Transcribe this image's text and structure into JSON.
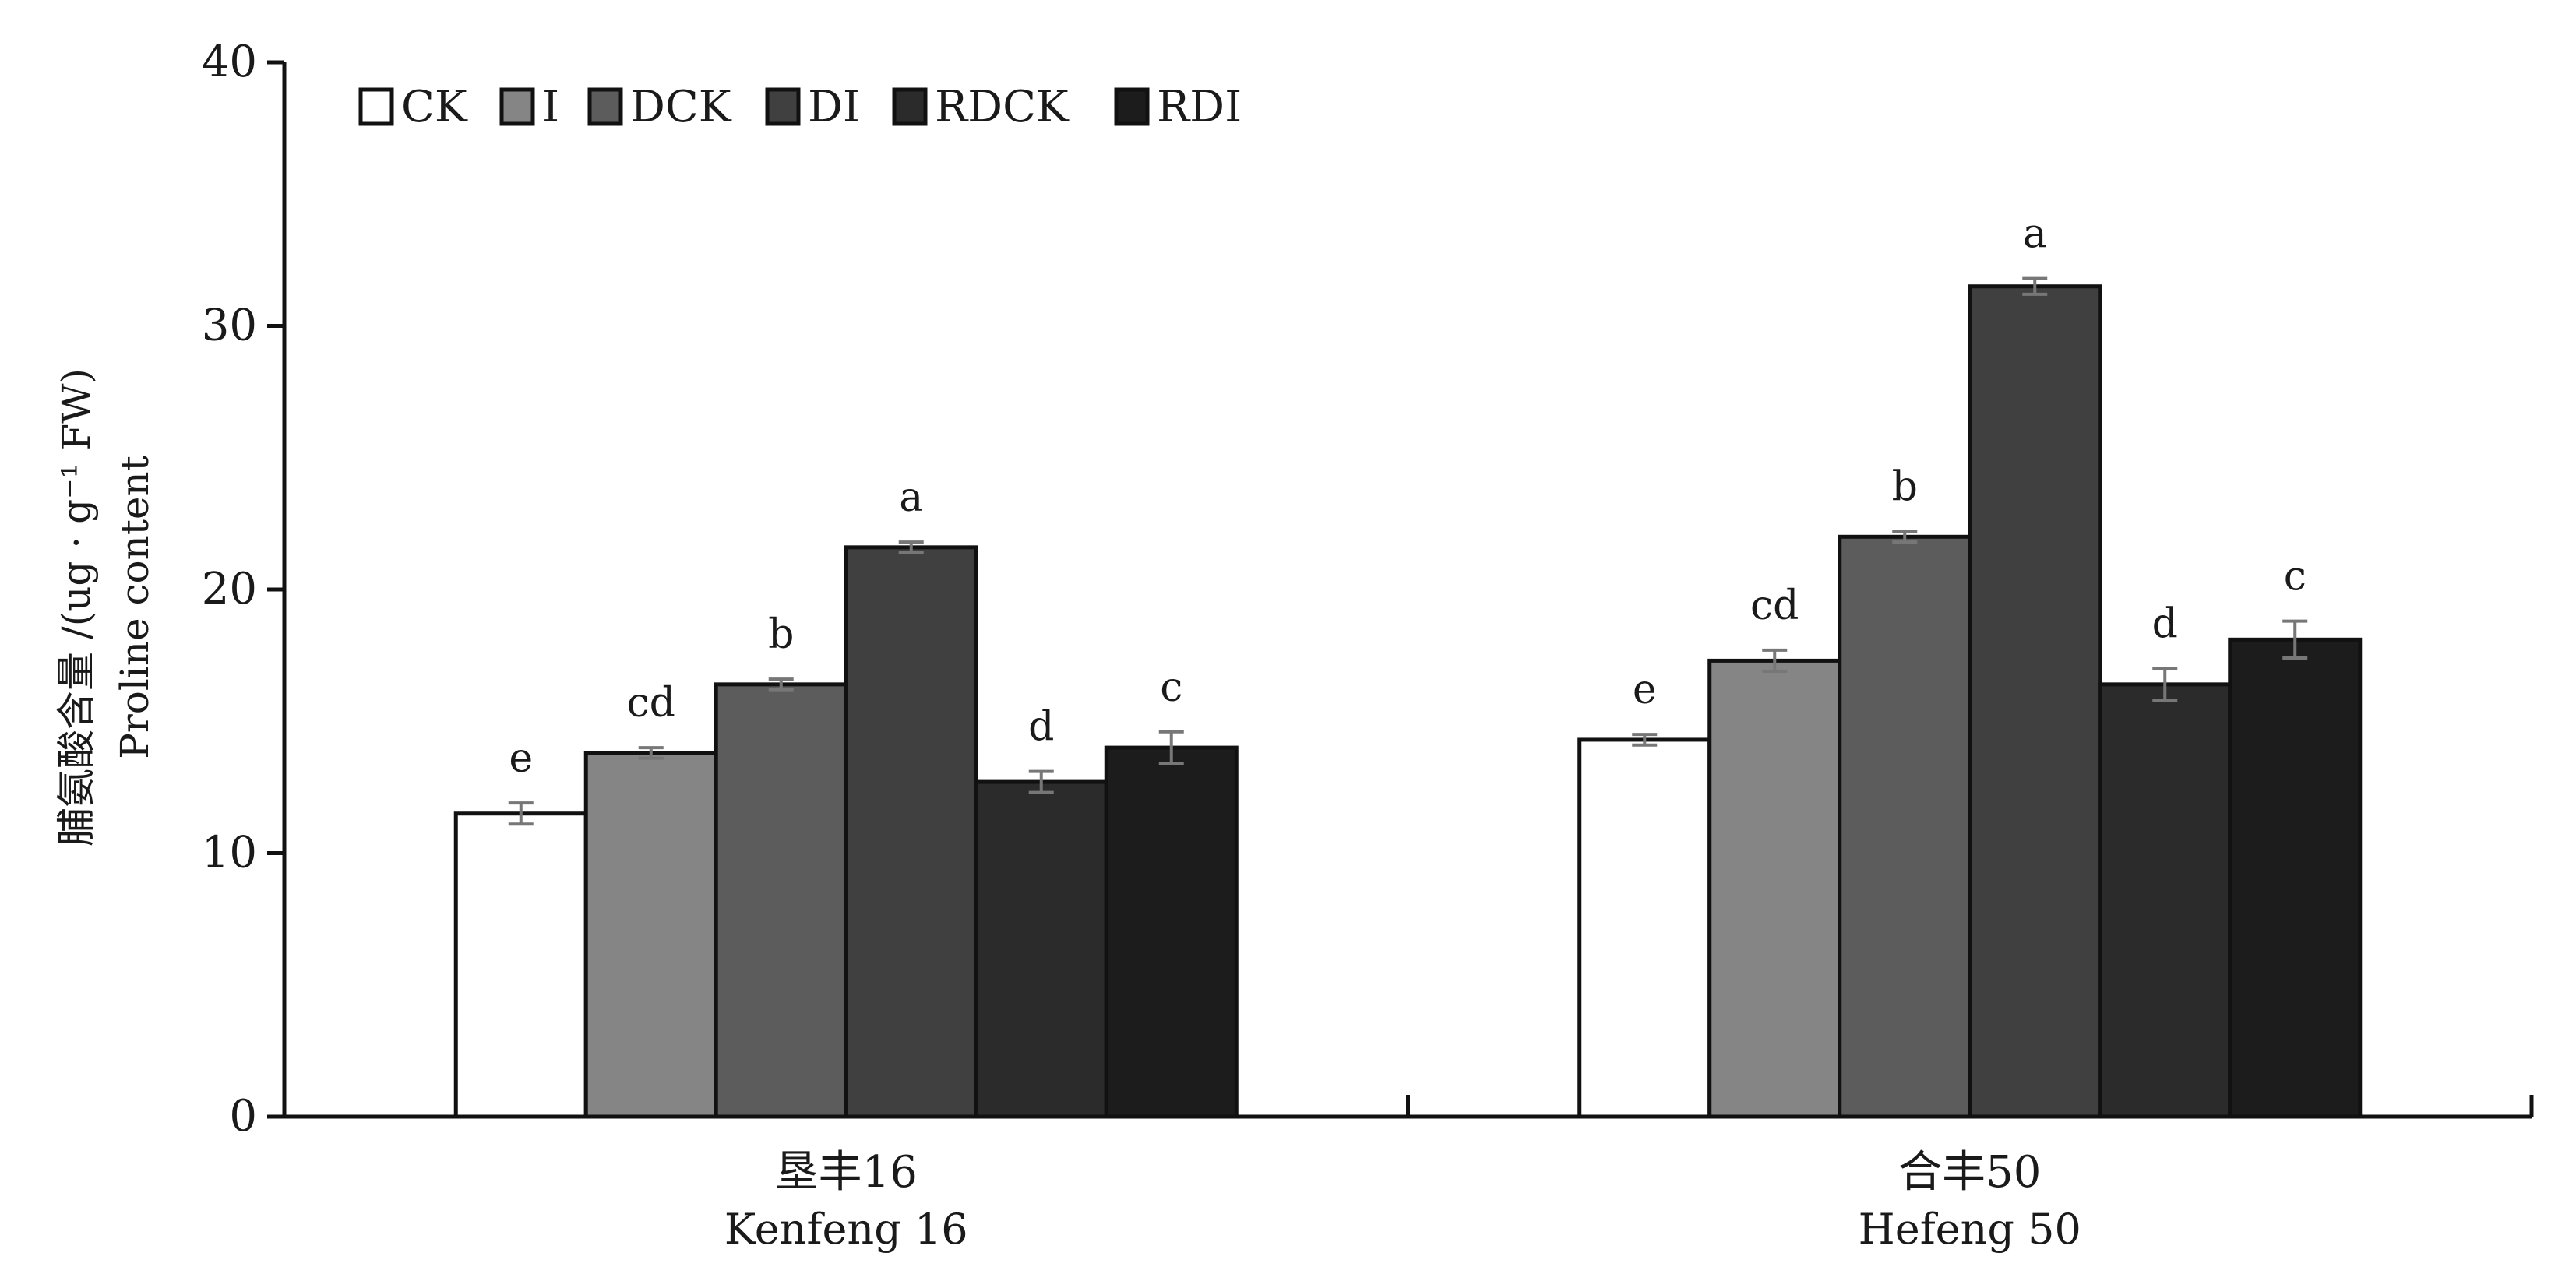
{
  "chart_data": {
    "type": "bar",
    "title": "",
    "ylabel_cn": "脯氨酸含量 /(ug · g⁻¹ FW)",
    "ylabel_en": "Proline content",
    "ylim": [
      0,
      40
    ],
    "yticks": [
      "0",
      "10",
      "20",
      "30",
      "40"
    ],
    "grid": false,
    "legend_position": "top-left",
    "categories": [
      {
        "cn": "垦丰16",
        "en": "Kenfeng 16"
      },
      {
        "cn": "合丰50",
        "en": "Hefeng 50"
      }
    ],
    "series": [
      {
        "name": "CK",
        "color": "#ffffff",
        "values": [
          11.5,
          14.3
        ],
        "errors": [
          0.4,
          0.2
        ],
        "letters": [
          "e",
          "e"
        ]
      },
      {
        "name": "I",
        "color": "#858585",
        "values": [
          13.8,
          17.3
        ],
        "errors": [
          0.2,
          0.4
        ],
        "letters": [
          "cd",
          "cd"
        ]
      },
      {
        "name": "DCK",
        "color": "#5c5c5c",
        "values": [
          16.4,
          22.0
        ],
        "errors": [
          0.2,
          0.2
        ],
        "letters": [
          "b",
          "b"
        ]
      },
      {
        "name": "DI",
        "color": "#404040",
        "values": [
          21.6,
          31.5
        ],
        "errors": [
          0.2,
          0.3
        ],
        "letters": [
          "a",
          "a"
        ]
      },
      {
        "name": "RDCK",
        "color": "#2b2b2b",
        "values": [
          12.7,
          16.4
        ],
        "errors": [
          0.4,
          0.6
        ],
        "letters": [
          "d",
          "d"
        ]
      },
      {
        "name": "RDI",
        "color": "#1c1c1c",
        "values": [
          14.0,
          18.1
        ],
        "errors": [
          0.6,
          0.7
        ],
        "letters": [
          "c",
          "c"
        ]
      }
    ]
  }
}
